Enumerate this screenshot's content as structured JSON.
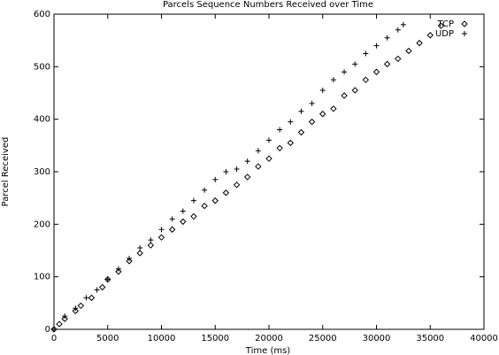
{
  "chart_data": {
    "type": "scatter",
    "title": "Parcels Sequence Numbers Received over Time",
    "x_label": "Time (ms)",
    "y_label": "Parcel Received",
    "xlim": [
      0,
      40000
    ],
    "xticks": [
      0,
      5000,
      10000,
      15000,
      20000,
      25000,
      30000,
      35000,
      40000
    ],
    "ylim": [
      0,
      600
    ],
    "yticks": [
      0,
      100,
      200,
      300,
      400,
      500,
      600
    ],
    "legend": "upper right",
    "series": [
      {
        "name": "TCP",
        "color": "#000000",
        "marker": "diamond",
        "x": [
          0,
          500,
          1000,
          2000,
          2500,
          3500,
          4500,
          5000,
          6000,
          7000,
          8000,
          9000,
          10000,
          11000,
          12000,
          13000,
          14000,
          15000,
          16000,
          17000,
          18000,
          19000,
          20000,
          21000,
          22000,
          23000,
          24000,
          25000,
          26000,
          27000,
          28000,
          29000,
          30000,
          31000,
          32000,
          33000,
          34000,
          35000,
          36000
        ],
        "values": [
          0,
          10,
          20,
          35,
          45,
          60,
          80,
          95,
          110,
          130,
          145,
          160,
          175,
          190,
          205,
          215,
          235,
          245,
          260,
          275,
          290,
          310,
          325,
          345,
          355,
          375,
          395,
          410,
          420,
          445,
          455,
          475,
          490,
          505,
          515,
          530,
          545,
          560,
          578
        ]
      },
      {
        "name": "UDP",
        "color": "#000000",
        "marker": "plus",
        "x": [
          0,
          1000,
          2000,
          3000,
          4000,
          5000,
          6000,
          7000,
          8000,
          9000,
          10000,
          11000,
          12000,
          13000,
          14000,
          15000,
          16000,
          17000,
          18000,
          19000,
          20000,
          21000,
          22000,
          23000,
          24000,
          25000,
          26000,
          27000,
          28000,
          29000,
          30000,
          31000,
          32000,
          32500
        ],
        "values": [
          0,
          25,
          40,
          60,
          75,
          95,
          115,
          135,
          155,
          170,
          190,
          210,
          225,
          245,
          265,
          285,
          300,
          305,
          320,
          340,
          360,
          380,
          395,
          415,
          430,
          455,
          475,
          490,
          505,
          525,
          540,
          555,
          570,
          580
        ]
      }
    ]
  }
}
